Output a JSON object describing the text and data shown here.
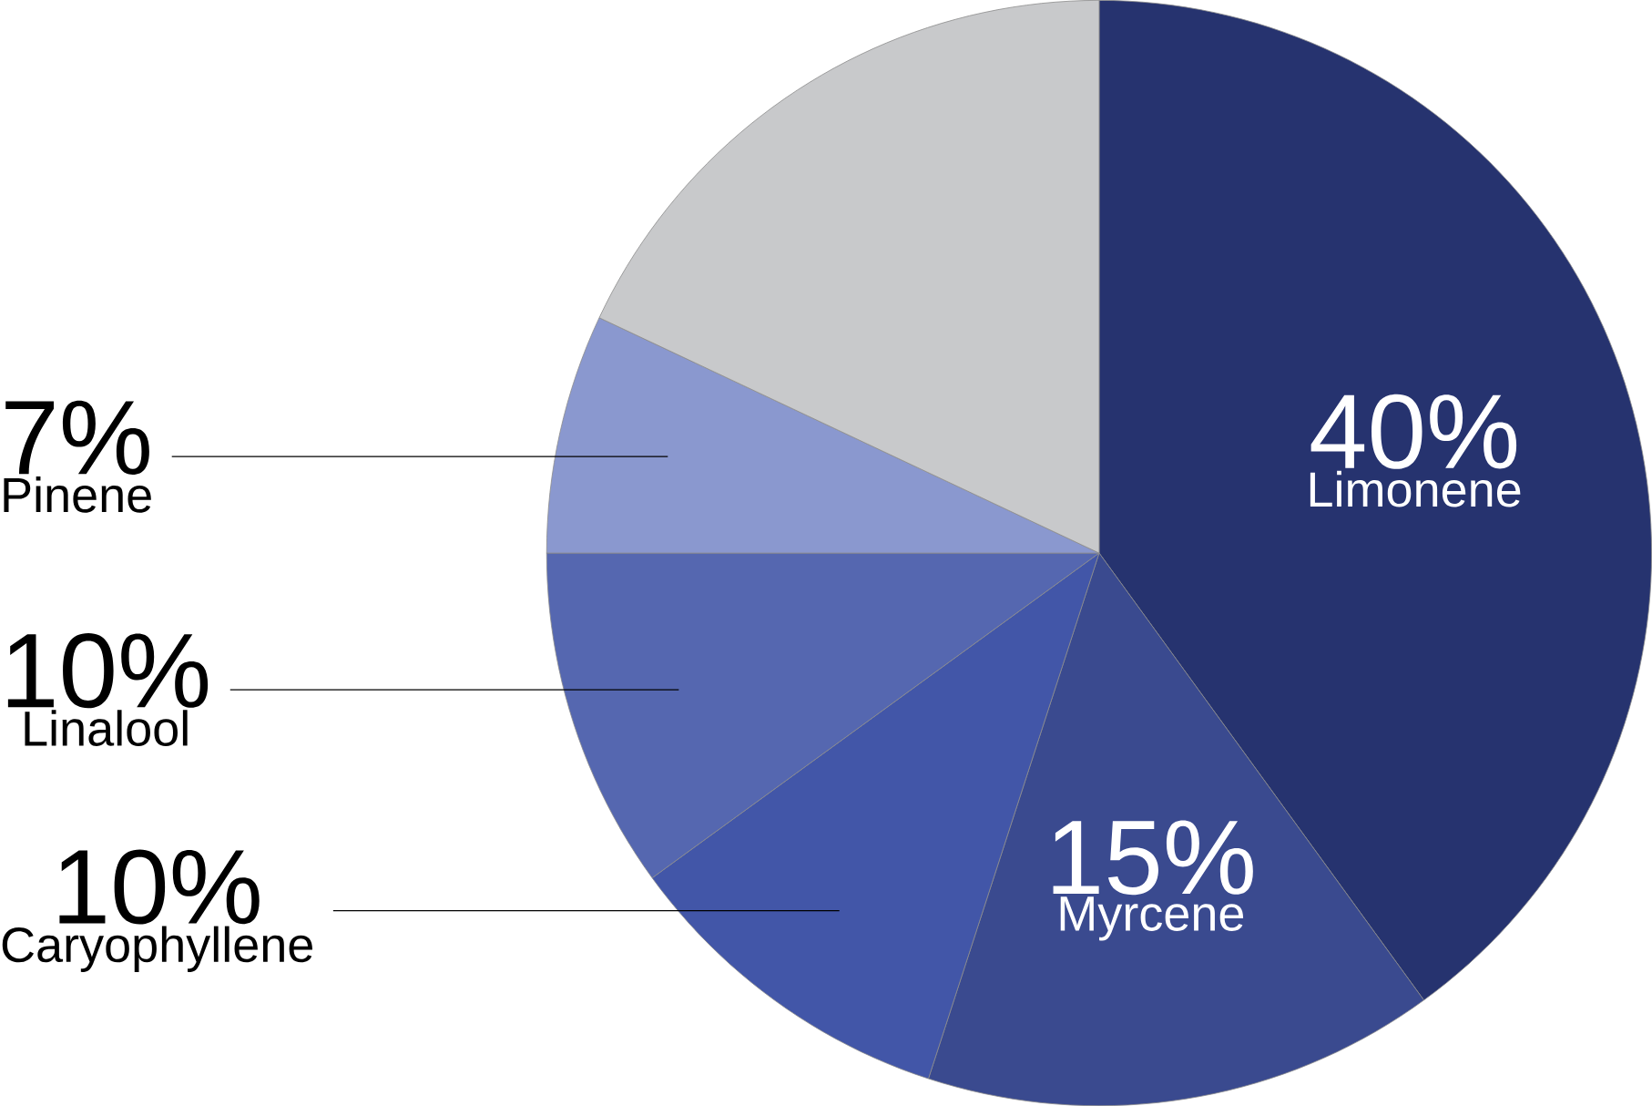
{
  "chart_data": {
    "type": "pie",
    "categories": [
      "Limonene",
      "Myrcene",
      "Caryophyllene",
      "Linalool",
      "Pinene",
      null
    ],
    "values": [
      40,
      15,
      10,
      10,
      7,
      18
    ],
    "colors": [
      "#26336f",
      "#3a4a8f",
      "#4256a8",
      "#5567b0",
      "#8a98cf",
      "#c8c9cb"
    ],
    "value_labels": [
      "40%",
      "15%",
      "10%",
      "10%",
      "7%",
      null
    ]
  }
}
